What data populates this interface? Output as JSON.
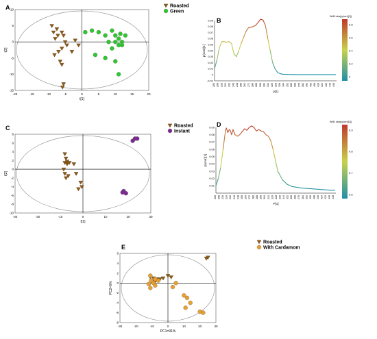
{
  "colors": {
    "roasted": "#8B5A1B",
    "green": "#2DC82D",
    "instant": "#7B2B90",
    "cardamom": "#E8A030",
    "axis": "#000000",
    "ellipse": "#999999",
    "spectrum_low": "#1F8FA8",
    "spectrum_mid": "#C8D24A",
    "spectrum_high": "#C0392B"
  },
  "chart_data": [
    {
      "panel": "A",
      "type": "scatter",
      "xlabel": "t[1]",
      "ylabel": "t[2]",
      "xlim": [
        -20,
        20
      ],
      "ylim": [
        -15,
        10
      ],
      "xticks": [
        "-20",
        "-15",
        "-10",
        "-5",
        "0",
        "5",
        "10",
        "15",
        "20"
      ],
      "yticks": [
        "10",
        "5",
        "0",
        "-5",
        "-10",
        "-15"
      ],
      "legend": [
        "Roasted",
        "Green"
      ],
      "series": [
        {
          "name": "Roasted",
          "marker": "triangle",
          "points": [
            [
              -9,
              5
            ],
            [
              -8.5,
              3
            ],
            [
              -7.5,
              4
            ],
            [
              -8,
              1
            ],
            [
              -6,
              3
            ],
            [
              -5.5,
              2
            ],
            [
              -5,
              0
            ],
            [
              -4.5,
              -1
            ],
            [
              -6,
              -2
            ],
            [
              -7,
              -3
            ],
            [
              -8.2,
              -4
            ],
            [
              -6.5,
              -6
            ],
            [
              -5.5,
              -13
            ],
            [
              -5.8,
              -14
            ],
            [
              -6,
              -7
            ],
            [
              -1,
              -1
            ],
            [
              -3,
              -3
            ],
            [
              -2,
              0.5
            ],
            [
              -7.2,
              2
            ]
          ]
        },
        {
          "name": "Green",
          "marker": "circle",
          "points": [
            [
              1,
              3
            ],
            [
              3,
              3.5
            ],
            [
              5,
              3
            ],
            [
              7,
              2
            ],
            [
              9,
              3.5
            ],
            [
              10,
              2
            ],
            [
              11,
              1
            ],
            [
              12,
              0
            ],
            [
              13,
              2
            ],
            [
              10,
              0
            ],
            [
              11,
              -1
            ],
            [
              12,
              -1
            ],
            [
              9,
              -2
            ],
            [
              4,
              -4
            ],
            [
              7,
              -5
            ],
            [
              10,
              -6
            ],
            [
              11,
              -10
            ],
            [
              8,
              0
            ],
            [
              11.5,
              2.5
            ]
          ]
        }
      ]
    },
    {
      "panel": "B",
      "type": "line",
      "ylabel": "p(corr)[1]",
      "xlabel": "p[1]",
      "ylim": [
        -0.01,
        0.09
      ],
      "yticks": [
        "0.09",
        "0.08",
        "0.07",
        "0.06",
        "0.05",
        "0.04",
        "0.03",
        "0.02",
        "0.01",
        "0",
        "-0.01"
      ],
      "xticks": [
        "200",
        "208",
        "216",
        "224",
        "232",
        "240",
        "248",
        "256",
        "264",
        "272",
        "280",
        "288",
        "296",
        "304",
        "312",
        "320",
        "328",
        "336",
        "344",
        "352",
        "360",
        "368",
        "376",
        "384",
        "392",
        "400",
        "408",
        "416",
        "424",
        "432",
        "440",
        "448"
      ],
      "colorbar_title": "Wt40 abs(p(corr)[1])",
      "colorbar_ticks": [
        "0.8",
        "0.6",
        "0.4",
        "0.2",
        "0"
      ],
      "x": [
        200,
        205,
        210,
        215,
        220,
        225,
        230,
        235,
        240,
        245,
        250,
        255,
        260,
        265,
        270,
        275,
        280,
        285,
        290,
        295,
        300,
        305,
        310,
        315,
        320,
        325,
        330,
        335,
        340,
        345,
        350,
        355,
        360,
        370,
        380,
        390,
        400,
        420,
        440,
        450
      ],
      "y": [
        0.01,
        0.025,
        0.045,
        0.055,
        0.055,
        0.054,
        0.055,
        0.052,
        0.035,
        0.03,
        0.04,
        0.052,
        0.062,
        0.072,
        0.078,
        0.079,
        0.08,
        0.082,
        0.087,
        0.092,
        0.091,
        0.082,
        0.06,
        0.04,
        0.02,
        0.01,
        0.004,
        0.002,
        0.001,
        0.0008,
        0.0006,
        0.0005,
        0.0004,
        0.0003,
        0.0003,
        0.0003,
        0.0003,
        0.0003,
        0.0003,
        0.0003
      ]
    },
    {
      "panel": "C",
      "type": "scatter",
      "xlabel": "t[1]",
      "ylabel": "t[2]",
      "xlim": [
        -30,
        30
      ],
      "ylim": [
        -10,
        8
      ],
      "xticks": [
        "-30",
        "-20",
        "-10",
        "0",
        "10",
        "20",
        "30"
      ],
      "yticks": [
        "8",
        "6",
        "4",
        "2",
        "0",
        "-2",
        "-4",
        "-6",
        "-8",
        "-10"
      ],
      "legend": [
        "Roasted",
        "Instant"
      ],
      "series": [
        {
          "name": "Roasted",
          "marker": "triangle",
          "points": [
            [
              -8,
              3.5
            ],
            [
              -7.5,
              2.5
            ],
            [
              -8,
              1.5
            ],
            [
              -7,
              1.2
            ],
            [
              -6,
              1.5
            ],
            [
              -4,
              1.2
            ],
            [
              -8.5,
              0
            ],
            [
              -8,
              -1
            ],
            [
              -6.5,
              -1.5
            ],
            [
              -3,
              -1
            ],
            [
              -1,
              -3
            ],
            [
              -0.5,
              -4
            ],
            [
              -2,
              -4.5
            ],
            [
              -7.5,
              -2
            ],
            [
              -7,
              1.8
            ]
          ]
        },
        {
          "name": "Instant",
          "marker": "circle",
          "points": [
            [
              22,
              6.5
            ],
            [
              23,
              7
            ],
            [
              24,
              7
            ],
            [
              18,
              -5
            ],
            [
              19,
              -5.5
            ],
            [
              17.5,
              -5.3
            ]
          ]
        }
      ]
    },
    {
      "panel": "D",
      "type": "line",
      "ylabel": "p(corr)[1]",
      "xlabel": "P[1]",
      "ylim": [
        0,
        0.09
      ],
      "yticks": [
        "0.09",
        "0.08",
        "0.07",
        "0.06",
        "0.05",
        "0.04",
        "0.03",
        "0.02",
        "0.01"
      ],
      "xticks": [
        "200",
        "208",
        "216",
        "224",
        "232",
        "240",
        "248",
        "256",
        "264",
        "272",
        "280",
        "288",
        "296",
        "304",
        "312",
        "320",
        "328",
        "336",
        "344",
        "352",
        "360",
        "368",
        "376",
        "384",
        "392",
        "400",
        "408",
        "416",
        "424",
        "432",
        "440",
        "448"
      ],
      "colorbar_title": "Wt41 abs(p(corr)[1])",
      "colorbar_ticks": [
        "0.9",
        "0.8",
        "0.7",
        "0.6"
      ],
      "x": [
        200,
        205,
        210,
        215,
        220,
        222,
        225,
        228,
        230,
        233,
        236,
        240,
        245,
        250,
        255,
        260,
        265,
        270,
        275,
        280,
        285,
        290,
        295,
        300,
        305,
        310,
        315,
        320,
        325,
        330,
        340,
        350,
        360,
        370,
        380,
        400,
        420,
        440,
        450
      ],
      "y": [
        0.01,
        0.02,
        0.035,
        0.06,
        0.085,
        0.089,
        0.083,
        0.087,
        0.086,
        0.08,
        0.087,
        0.08,
        0.078,
        0.08,
        0.084,
        0.088,
        0.086,
        0.09,
        0.092,
        0.09,
        0.085,
        0.087,
        0.085,
        0.084,
        0.08,
        0.078,
        0.072,
        0.06,
        0.045,
        0.03,
        0.018,
        0.012,
        0.009,
        0.008,
        0.007,
        0.006,
        0.005,
        0.004,
        0.004
      ]
    },
    {
      "panel": "E",
      "type": "scatter",
      "xlabel": "PC1=91%",
      "ylabel": "PC2=6%",
      "xlim": [
        -30,
        30
      ],
      "ylim": [
        -8,
        6
      ],
      "xticks": [
        "-30",
        "-20",
        "-10",
        "0",
        "10",
        "20",
        "30"
      ],
      "yticks": [
        "6",
        "4",
        "2",
        "0",
        "-2",
        "-4",
        "-6",
        "-8"
      ],
      "legend": [
        "Roasted",
        "With Cardamom"
      ],
      "series": [
        {
          "name": "Roasted",
          "marker": "triangle",
          "points": [
            [
              -11,
              1.2
            ],
            [
              -9,
              1
            ],
            [
              -7,
              0.8
            ],
            [
              -5,
              0.8
            ],
            [
              -3,
              1
            ],
            [
              0,
              1.5
            ],
            [
              2,
              1.2
            ],
            [
              -10,
              0.2
            ],
            [
              -8,
              0.3
            ],
            [
              24,
              5
            ],
            [
              25,
              5.2
            ]
          ]
        },
        {
          "name": "With Cardamom",
          "marker": "circle",
          "points": [
            [
              -11,
              1.5
            ],
            [
              -10.5,
              0.5
            ],
            [
              -9,
              0
            ],
            [
              -8,
              -0.5
            ],
            [
              -12,
              -0.2
            ],
            [
              -11,
              -1
            ],
            [
              -8,
              0.8
            ],
            [
              -6,
              0.5
            ],
            [
              3,
              -0.8
            ],
            [
              5,
              0
            ],
            [
              10,
              -2.5
            ],
            [
              12,
              -3
            ],
            [
              14,
              -4
            ],
            [
              11,
              -5
            ],
            [
              20,
              -5.8
            ],
            [
              22,
              -6
            ]
          ]
        }
      ]
    }
  ]
}
